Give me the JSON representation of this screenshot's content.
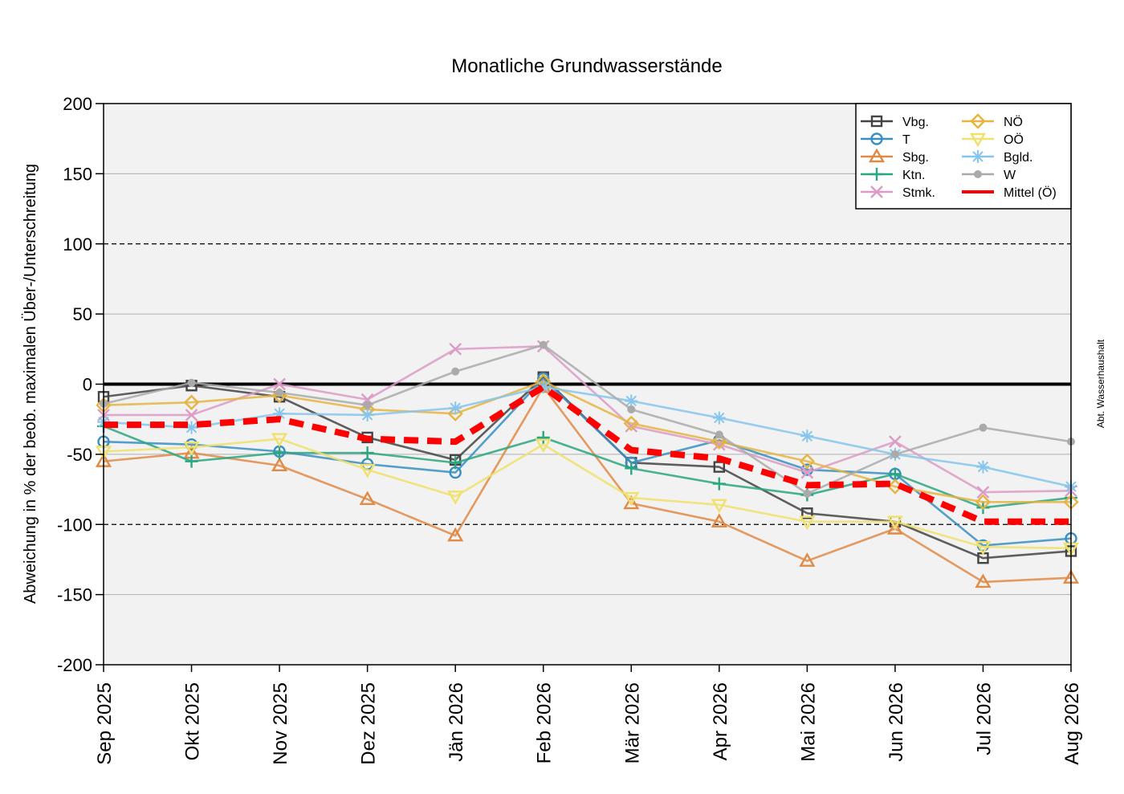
{
  "chart_data": {
    "type": "line",
    "title": "Monatliche Grundwasserstände",
    "ylabel": "Abweichung in % der beob. maximalen Über-/Unterschreitung",
    "xlabel": "",
    "side_note": "Abt. Wasserhaushalt",
    "ylim": [
      -200,
      200
    ],
    "yticks": [
      200,
      150,
      100,
      50,
      0,
      -50,
      -100,
      -150,
      -200
    ],
    "dashed_reference_lines": [
      100,
      -100
    ],
    "bold_reference_line": 0,
    "grid": true,
    "legend_position": "top-right",
    "categories": [
      "Sep 2025",
      "Okt 2025",
      "Nov 2025",
      "Dez 2025",
      "Jän 2026",
      "Feb 2026",
      "Mär 2026",
      "Apr 2026",
      "Mai 2026",
      "Jun 2026",
      "Jul 2026",
      "Aug 2026"
    ],
    "series": [
      {
        "name": "Vbg.",
        "color": "#444444",
        "marker": "square",
        "values": [
          -9,
          -1,
          -9,
          -38,
          -54,
          5,
          -56,
          -59,
          -92,
          -98,
          -124,
          -119
        ]
      },
      {
        "name": "T",
        "color": "#3a8fc2",
        "marker": "circle",
        "values": [
          -41,
          -43,
          -48,
          -57,
          -63,
          4,
          -56,
          -40,
          -61,
          -64,
          -115,
          -110
        ]
      },
      {
        "name": "Sbg.",
        "color": "#e08a45",
        "marker": "triangle-up",
        "values": [
          -55,
          -49,
          -58,
          -82,
          -108,
          -2,
          -85,
          -98,
          -126,
          -103,
          -141,
          -138
        ]
      },
      {
        "name": "Ktn.",
        "color": "#2aa680",
        "marker": "plus",
        "values": [
          -30,
          -55,
          -49,
          -49,
          -56,
          -38,
          -60,
          -71,
          -79,
          -64,
          -88,
          -81
        ]
      },
      {
        "name": "Stmk.",
        "color": "#dc9bc6",
        "marker": "x",
        "values": [
          -22,
          -22,
          0,
          -11,
          25,
          27,
          -30,
          -43,
          -63,
          -41,
          -77,
          -76
        ]
      },
      {
        "name": "NÖ",
        "color": "#e6b440",
        "marker": "diamond",
        "values": [
          -15,
          -13,
          -8,
          -18,
          -21,
          2,
          -28,
          -41,
          -55,
          -73,
          -84,
          -84
        ]
      },
      {
        "name": "OÖ",
        "color": "#f0e06c",
        "marker": "triangle-down",
        "values": [
          -48,
          -45,
          -39,
          -61,
          -80,
          -43,
          -81,
          -86,
          -98,
          -98,
          -116,
          -117
        ]
      },
      {
        "name": "Bgld.",
        "color": "#86c6ec",
        "marker": "asterisk",
        "values": [
          -27,
          -31,
          -21,
          -22,
          -17,
          -2,
          -12,
          -24,
          -37,
          -50,
          -59,
          -73
        ]
      },
      {
        "name": "W",
        "color": "#aaaaaa",
        "marker": "dot",
        "values": [
          -14,
          1,
          -6,
          -15,
          9,
          28,
          -18,
          -36,
          -78,
          -50,
          -31,
          -41
        ]
      },
      {
        "name": "Mittel (Ö)",
        "color": "#ff0000",
        "marker": "none",
        "dashed": true,
        "values": [
          -29,
          -29,
          -25,
          -39,
          -41,
          -2,
          -47,
          -53,
          -72,
          -71,
          -98,
          -98
        ]
      }
    ]
  }
}
